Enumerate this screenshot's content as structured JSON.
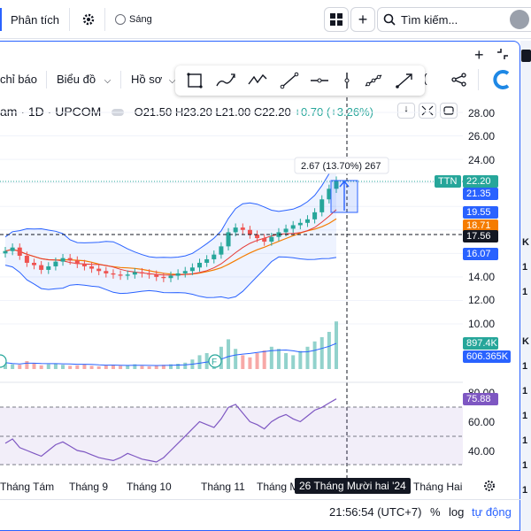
{
  "topbar": {
    "analysis_label": "Phân tích",
    "theme_label": "Sáng",
    "search_placeholder": "Tìm kiếm..."
  },
  "toolbar": {
    "indicators_label": "chỉ báo",
    "chart_type_label": "Biểu đồ",
    "profile_label": "Hồ sơ"
  },
  "legend": {
    "symbol": "am · 1D · UPCOM",
    "open": "O21.50",
    "high": "H23.20",
    "low": "L21.00",
    "close": "C22.20",
    "change": "+0.70 (+3.26%)"
  },
  "measure_label": "2.67 (13.70%) 267",
  "price_scale": {
    "ticks": [
      "28.00",
      "26.00",
      "24.00",
      "14.00",
      "12.00",
      "10.00"
    ],
    "tags": [
      {
        "label": "TTN",
        "value": "22.20",
        "color": "#26a69a"
      },
      {
        "value": "21.35",
        "color": "#2962ff"
      },
      {
        "value": "19.55",
        "color": "#2962ff"
      },
      {
        "value": "18.71",
        "color": "#f57c00"
      },
      {
        "value": "17.56",
        "color": "#131722"
      },
      {
        "value": "16.07",
        "color": "#2962ff"
      },
      {
        "value": "897.4K",
        "color": "#26a69a"
      },
      {
        "value": "606.365K",
        "color": "#2962ff"
      },
      {
        "value": "75.88",
        "color": "#7e57c2"
      }
    ],
    "rsi_ticks": [
      "80.00",
      "60.00",
      "40.00"
    ]
  },
  "time_axis": {
    "labels": [
      "Tháng Tám",
      "Tháng 9",
      "Tháng 10",
      "Tháng 11",
      "Tháng M",
      "Tháng Hai"
    ],
    "crosshair_date": "26 Tháng Mười hai '24"
  },
  "bottombar": {
    "time": "21:56:54 (UTC+7)",
    "percent": "%",
    "log": "log",
    "auto": "tự động"
  },
  "right_strip_letters": [
    "K",
    "1",
    "1",
    "K",
    "1",
    "1",
    "1",
    "1",
    "1",
    "1"
  ],
  "event_marker": "F",
  "chart_data": {
    "type": "candlestick",
    "ohlc_current": {
      "open": 21.5,
      "high": 23.2,
      "low": 21.0,
      "close": 22.2,
      "change": 0.7,
      "change_pct": 3.26
    },
    "close_approx": [
      16.2,
      16.5,
      15.8,
      15.2,
      15.0,
      14.6,
      14.9,
      15.3,
      15.6,
      15.4,
      15.1,
      14.9,
      14.7,
      14.5,
      14.3,
      14.2,
      14.1,
      14.2,
      14.4,
      14.3,
      14.2,
      14.0,
      13.9,
      14.1,
      14.3,
      14.5,
      14.8,
      15.2,
      15.5,
      15.9,
      16.6,
      17.8,
      18.2,
      18.0,
      17.6,
      17.3,
      17.0,
      17.4,
      17.8,
      18.1,
      18.4,
      18.6,
      18.9,
      19.5,
      20.6,
      21.5,
      22.2
    ],
    "volume_approx": [
      120,
      90,
      80,
      150,
      110,
      70,
      90,
      100,
      80,
      60,
      70,
      90,
      60,
      50,
      70,
      80,
      60,
      70,
      90,
      60,
      50,
      70,
      80,
      90,
      100,
      120,
      180,
      260,
      300,
      240,
      420,
      560,
      380,
      260,
      220,
      300,
      350,
      420,
      380,
      300,
      260,
      340,
      420,
      520,
      600,
      700,
      897
    ],
    "rsi_approx": [
      45,
      48,
      42,
      40,
      38,
      36,
      40,
      44,
      46,
      43,
      40,
      39,
      37,
      35,
      34,
      33,
      35,
      38,
      36,
      34,
      33,
      32,
      35,
      40,
      45,
      50,
      55,
      60,
      58,
      56,
      62,
      70,
      72,
      66,
      60,
      58,
      55,
      60,
      63,
      65,
      62,
      60,
      64,
      68,
      70,
      73,
      75.88
    ],
    "rsi_bands": [
      70,
      50,
      30
    ]
  }
}
